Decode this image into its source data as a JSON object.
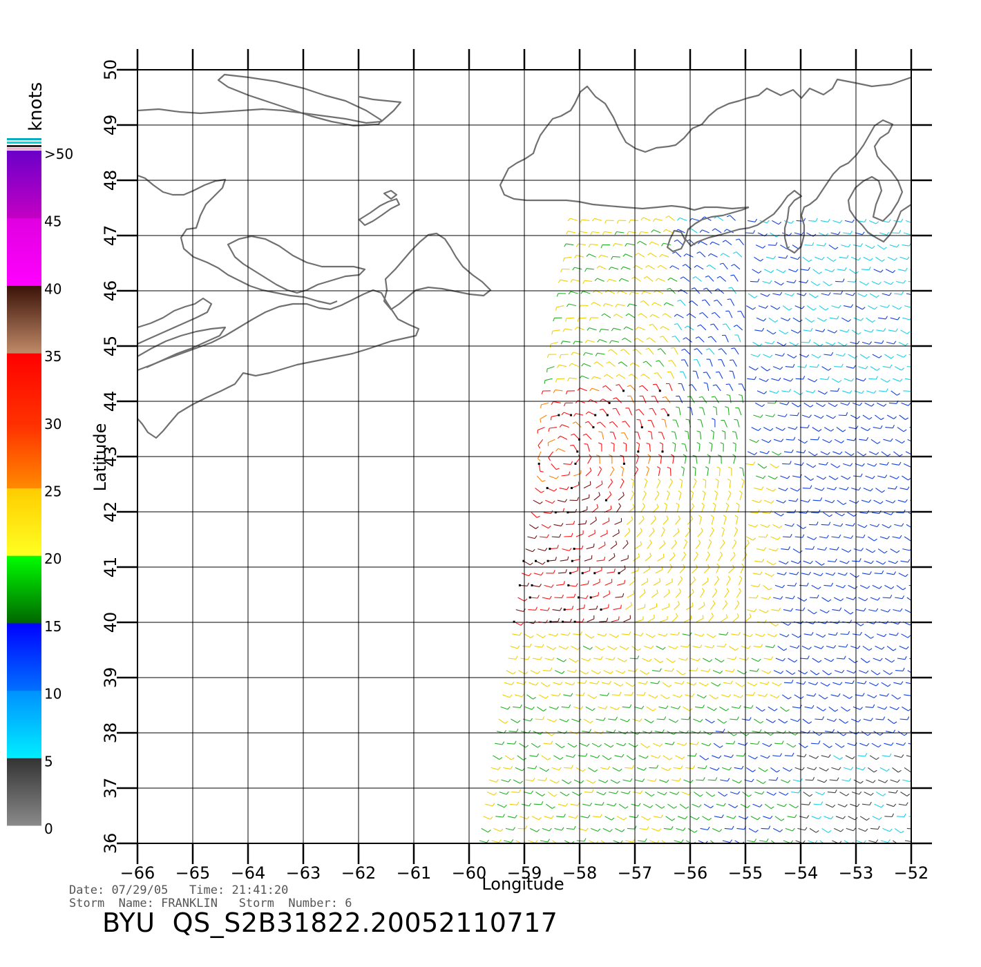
{
  "map": {
    "xlabel": "Longitude",
    "ylabel": "Latitude",
    "lon_range": [
      -66,
      -52
    ],
    "lat_range": [
      36,
      50
    ],
    "lon_ticks": [
      "−66",
      "−65",
      "−64",
      "−63",
      "−62",
      "−61",
      "−60",
      "−59",
      "−58",
      "−57",
      "−56",
      "−55",
      "−54",
      "−53",
      "−52"
    ],
    "lat_ticks": [
      "36",
      "37",
      "38",
      "39",
      "40",
      "41",
      "42",
      "43",
      "44",
      "45",
      "46",
      "47",
      "48",
      "49",
      "50"
    ],
    "grid": true,
    "coastline_color": "#707070"
  },
  "colorbar": {
    "title": "knots",
    "labels": [
      ">50",
      "45",
      "40",
      "35",
      "30",
      "25",
      "20",
      "15",
      "10",
      "5",
      "0"
    ],
    "ranges": [
      {
        "from": 0,
        "to": 5,
        "color_top": "#333333",
        "color_bottom": "#8a8a8a"
      },
      {
        "from": 5,
        "to": 10,
        "color_top": "#0090ff",
        "color_bottom": "#00eeff"
      },
      {
        "from": 10,
        "to": 15,
        "color_top": "#0000ff",
        "color_bottom": "#0070ff"
      },
      {
        "from": 15,
        "to": 20,
        "color_top": "#00ff00",
        "color_bottom": "#006600"
      },
      {
        "from": 20,
        "to": 25,
        "color_top": "#ffcc00",
        "color_bottom": "#ffff22"
      },
      {
        "from": 25,
        "to": 30,
        "color_top": "#ff2a00",
        "color_bottom": "#ff8a00"
      },
      {
        "from": 30,
        "to": 35,
        "color_top": "#ff0000",
        "color_bottom": "#ff3000"
      },
      {
        "from": 35,
        "to": 40,
        "color_top": "#3a1208",
        "color_bottom": "#c08a68"
      },
      {
        "from": 40,
        "to": 45,
        "color_top": "#e000e0",
        "color_bottom": "#ff00ff"
      },
      {
        "from": 45,
        "to": 50,
        "color_top": "#6a00c8",
        "color_bottom": "#c400c4"
      }
    ]
  },
  "wind_swath": {
    "description": "QuikSCAT wind barbs, colored by speed (knots)",
    "swath_corners": [
      [
        -59.9,
        36.0
      ],
      [
        -58.1,
        47.4
      ],
      [
        -52.0,
        47.4
      ],
      [
        -52.0,
        36.0
      ]
    ],
    "calm_region": [
      [
        -54.2,
        36.0
      ],
      [
        -54.2,
        37.6
      ],
      [
        -52.0,
        37.6
      ],
      [
        -52.0,
        36.0
      ]
    ]
  },
  "footer": {
    "date_label": "Date:",
    "date": "07/29/05",
    "time_label": "Time:",
    "time": "21:41:20",
    "storm_name_label": "Storm  Name:",
    "storm_name": "FRANKLIN",
    "storm_number_label": "Storm  Number:",
    "storm_number": "6",
    "title": "BYU  QS_S2B31822.20052110717"
  }
}
